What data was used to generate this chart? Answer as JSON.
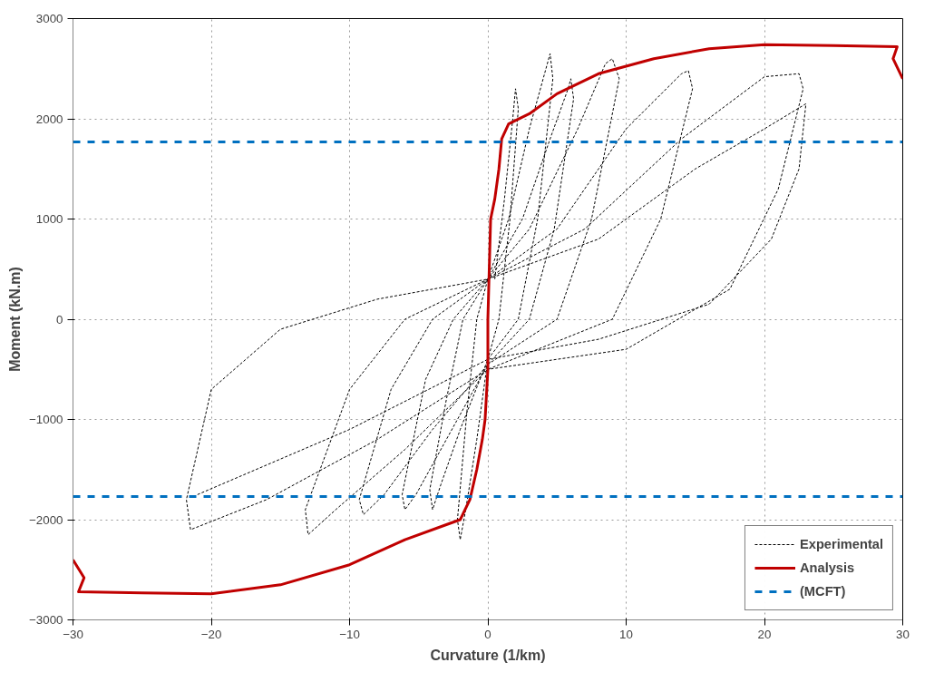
{
  "chart_data": {
    "type": "line",
    "xlabel": "Curvature (1/km)",
    "ylabel": "Moment (kN.m)",
    "xlim": [
      -30,
      30
    ],
    "ylim": [
      -3000,
      3000
    ],
    "xticks": [
      -30,
      -20,
      -10,
      0,
      10,
      20,
      30
    ],
    "yticks": [
      -3000,
      -2000,
      -1000,
      0,
      1000,
      2000,
      3000
    ],
    "grid": true,
    "legend": "bottom right",
    "marker": "none",
    "series": [
      {
        "name": "Experimental",
        "color": "#000000",
        "line_style": "dashed",
        "x": [
          0.5,
          1.2,
          1.8,
          2,
          2.2,
          1.6,
          0.8,
          0,
          -0.8,
          -1.6,
          -2,
          -2.2,
          -1.5,
          -0.8,
          0,
          1.5,
          3,
          4.2,
          4.5,
          4.7,
          3.6,
          2.2,
          0,
          -2,
          -3.4,
          -4,
          -4.2,
          -3,
          -1.8,
          0,
          2.5,
          4.5,
          5.8,
          6,
          6.2,
          4.8,
          3,
          0,
          -3,
          -5.2,
          -6,
          -6.2,
          -4.5,
          -2.5,
          0,
          3,
          6.5,
          8.5,
          9,
          9.5,
          7.5,
          5,
          0,
          -4,
          -7.5,
          -9,
          -9.3,
          -7,
          -4,
          0,
          5,
          10,
          14,
          14.5,
          14.8,
          12.5,
          9,
          0,
          -6,
          -11,
          -13,
          -13.2,
          -10,
          -6,
          0,
          7,
          14,
          20,
          22.5,
          22.8,
          21,
          17.5,
          10,
          0,
          -8,
          -16,
          -21.5,
          -21.8,
          -20,
          -15,
          -8,
          0,
          8,
          15,
          20,
          23,
          22.5,
          20.5,
          16,
          8,
          0,
          -10,
          -21
        ],
        "values": [
          400,
          1200,
          2000,
          2300,
          2100,
          1000,
          0,
          -400,
          -1200,
          -1900,
          -2200,
          -2000,
          -900,
          0,
          400,
          1000,
          1900,
          2500,
          2650,
          2400,
          1000,
          0,
          -400,
          -1100,
          -1650,
          -1900,
          -1700,
          -800,
          0,
          400,
          1000,
          1800,
          2300,
          2400,
          2200,
          900,
          0,
          -450,
          -1200,
          -1750,
          -1900,
          -1750,
          -600,
          0,
          400,
          900,
          1900,
          2550,
          2600,
          2400,
          1000,
          0,
          -450,
          -1100,
          -1750,
          -1950,
          -1800,
          -700,
          0,
          400,
          900,
          1900,
          2450,
          2480,
          2300,
          1000,
          0,
          -500,
          -1300,
          -1900,
          -2150,
          -1900,
          -700,
          0,
          400,
          900,
          1800,
          2420,
          2450,
          2300,
          1300,
          300,
          -300,
          -500,
          -1200,
          -1800,
          -2100,
          -1800,
          -700,
          -100,
          200,
          400,
          800,
          1500,
          1900,
          2150,
          1500,
          800,
          150,
          -200,
          -400,
          -1100,
          -1750
        ]
      },
      {
        "name": "Analysis",
        "color": "#c00000",
        "line_style": "solid",
        "x": [
          -30,
          -29.2,
          -29.6,
          -25,
          -20,
          -15,
          -10,
          -6,
          -3,
          -2,
          -1.3,
          -0.8,
          -0.4,
          -0.2,
          0,
          0,
          0.1,
          0.2,
          0.5,
          0.8,
          1,
          1.5,
          3,
          5,
          8,
          12,
          16,
          20,
          25,
          29.6,
          29.3,
          30
        ],
        "values": [
          -2400,
          -2580,
          -2720,
          -2730,
          -2740,
          -2650,
          -2450,
          -2200,
          -2050,
          -2000,
          -1800,
          -1500,
          -1200,
          -1000,
          -500,
          0,
          500,
          1000,
          1200,
          1500,
          1800,
          1950,
          2050,
          2250,
          2450,
          2600,
          2700,
          2740,
          2730,
          2720,
          2600,
          2400
        ]
      }
    ],
    "ref_lines": [
      {
        "axis": "y",
        "value": 1770,
        "label": "(MCFT)",
        "color": "#0070c0",
        "line_style": "dashed"
      },
      {
        "axis": "y",
        "value": -1770,
        "color": "#0070c0",
        "line_style": "dashed"
      }
    ]
  }
}
